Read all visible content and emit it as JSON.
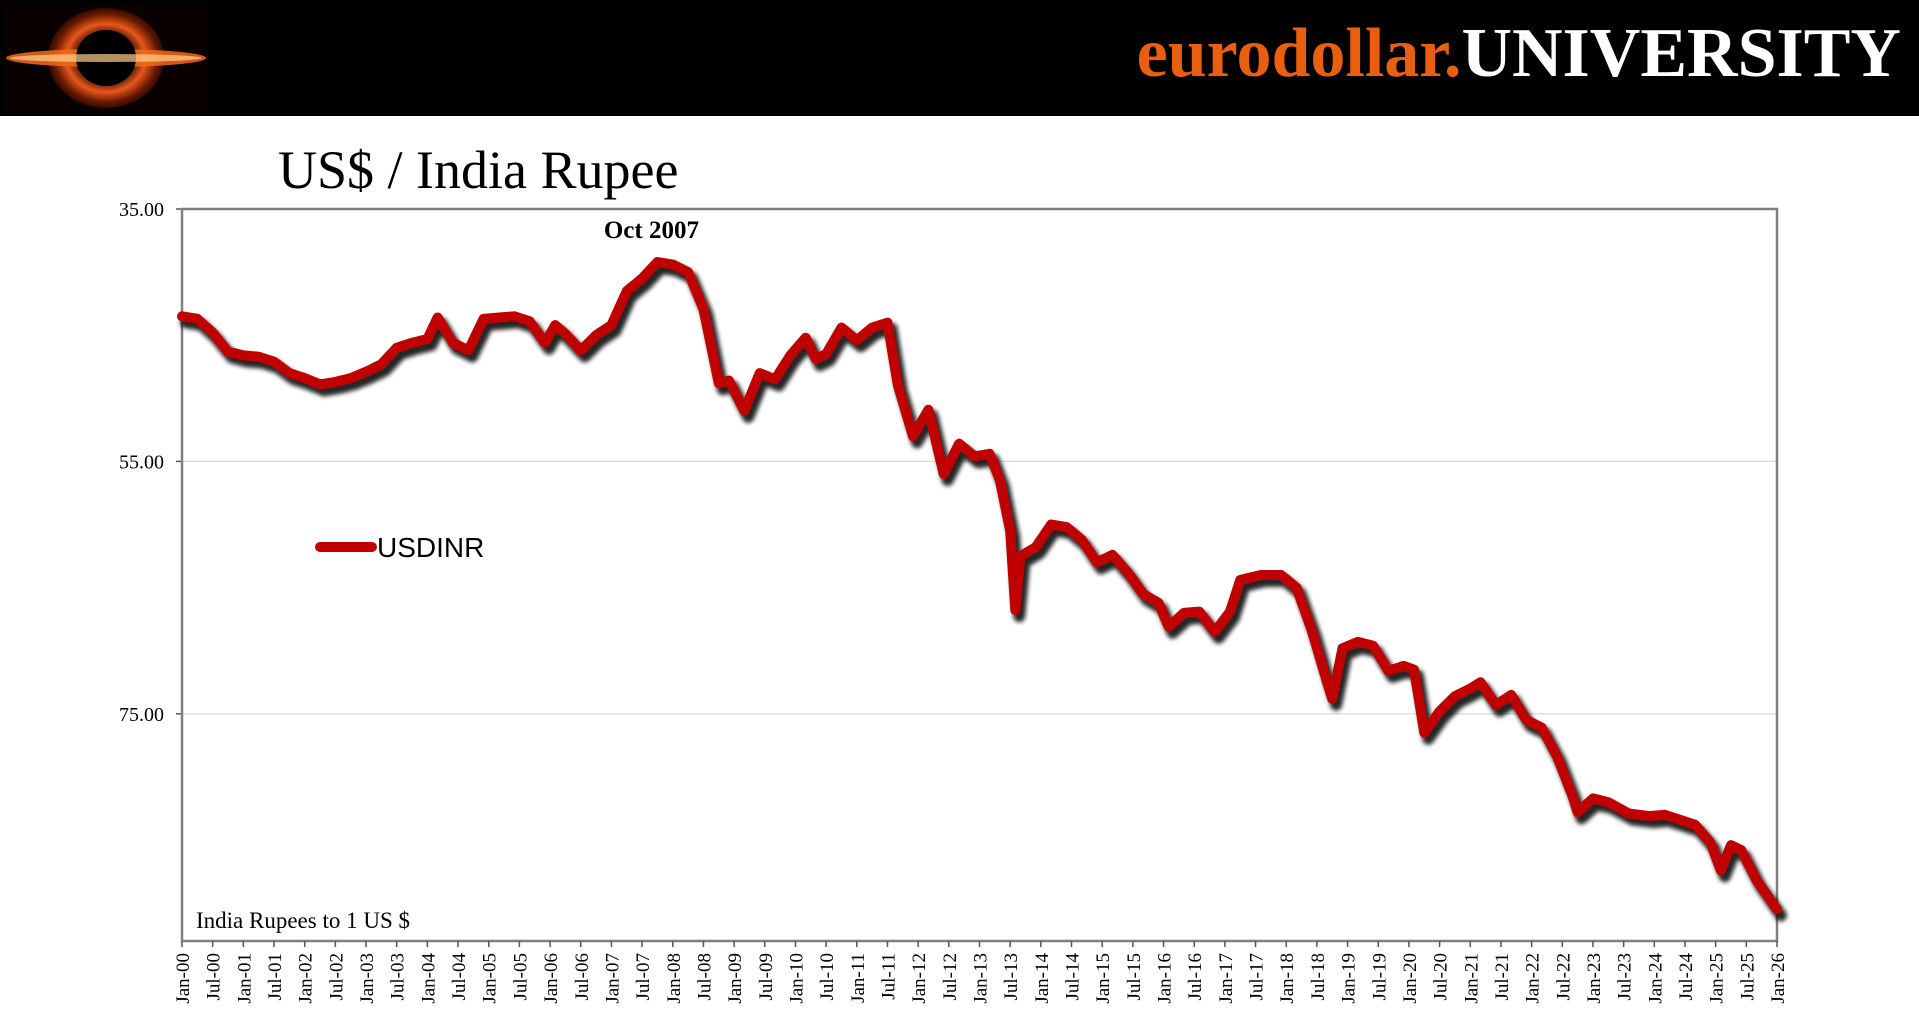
{
  "brand": {
    "part1": "eurodollar.",
    "part2": "UNIVERSITY",
    "accent_color": "#e8600f"
  },
  "chart_data": {
    "type": "line",
    "title": "US$ / India Rupee",
    "series": [
      {
        "name": "USDINR",
        "color": "#c00000",
        "points": [
          [
            "2000-01",
            43.5
          ],
          [
            "2000-04",
            43.7
          ],
          [
            "2000-07",
            44.8
          ],
          [
            "2000-10",
            46.3
          ],
          [
            "2001-01",
            46.6
          ],
          [
            "2001-04",
            46.7
          ],
          [
            "2001-07",
            47.1
          ],
          [
            "2001-10",
            48.0
          ],
          [
            "2002-01",
            48.4
          ],
          [
            "2002-04",
            48.9
          ],
          [
            "2002-07",
            48.7
          ],
          [
            "2002-10",
            48.4
          ],
          [
            "2003-01",
            47.9
          ],
          [
            "2003-04",
            47.3
          ],
          [
            "2003-07",
            46.0
          ],
          [
            "2003-10",
            45.6
          ],
          [
            "2004-01",
            45.3
          ],
          [
            "2004-03",
            43.6
          ],
          [
            "2004-06",
            45.6
          ],
          [
            "2004-09",
            46.2
          ],
          [
            "2004-12",
            43.7
          ],
          [
            "2005-03",
            43.6
          ],
          [
            "2005-06",
            43.5
          ],
          [
            "2005-09",
            43.9
          ],
          [
            "2005-12",
            45.6
          ],
          [
            "2006-02",
            44.2
          ],
          [
            "2006-04",
            44.9
          ],
          [
            "2006-07",
            46.2
          ],
          [
            "2006-10",
            45.0
          ],
          [
            "2007-01",
            44.2
          ],
          [
            "2007-04",
            41.5
          ],
          [
            "2007-07",
            40.5
          ],
          [
            "2007-10",
            39.2
          ],
          [
            "2008-01",
            39.4
          ],
          [
            "2008-04",
            40.0
          ],
          [
            "2008-07",
            42.9
          ],
          [
            "2008-10",
            48.8
          ],
          [
            "2008-12",
            48.6
          ],
          [
            "2009-03",
            51.0
          ],
          [
            "2009-06",
            48.0
          ],
          [
            "2009-09",
            48.5
          ],
          [
            "2009-12",
            46.6
          ],
          [
            "2010-03",
            45.2
          ],
          [
            "2010-05",
            46.9
          ],
          [
            "2010-07",
            46.5
          ],
          [
            "2010-10",
            44.4
          ],
          [
            "2011-01",
            45.4
          ],
          [
            "2011-04",
            44.4
          ],
          [
            "2011-07",
            44.0
          ],
          [
            "2011-09",
            48.9
          ],
          [
            "2011-12",
            53.0
          ],
          [
            "2012-03",
            50.9
          ],
          [
            "2012-06",
            56.0
          ],
          [
            "2012-09",
            53.6
          ],
          [
            "2012-12",
            54.6
          ],
          [
            "2013-03",
            54.4
          ],
          [
            "2013-05",
            56.5
          ],
          [
            "2013-07",
            60.5
          ],
          [
            "2013-08",
            66.8
          ],
          [
            "2013-09",
            62.5
          ],
          [
            "2013-12",
            61.8
          ],
          [
            "2014-03",
            60.0
          ],
          [
            "2014-06",
            60.2
          ],
          [
            "2014-09",
            61.2
          ],
          [
            "2014-12",
            63.0
          ],
          [
            "2015-03",
            62.4
          ],
          [
            "2015-06",
            63.8
          ],
          [
            "2015-09",
            65.5
          ],
          [
            "2015-12",
            66.2
          ],
          [
            "2016-02",
            68.1
          ],
          [
            "2016-05",
            67.0
          ],
          [
            "2016-08",
            66.9
          ],
          [
            "2016-11",
            68.5
          ],
          [
            "2017-02",
            66.9
          ],
          [
            "2017-04",
            64.4
          ],
          [
            "2017-08",
            64.0
          ],
          [
            "2017-12",
            64.0
          ],
          [
            "2018-03",
            65.0
          ],
          [
            "2018-06",
            68.4
          ],
          [
            "2018-09",
            72.5
          ],
          [
            "2018-10",
            73.8
          ],
          [
            "2018-12",
            69.8
          ],
          [
            "2019-03",
            69.3
          ],
          [
            "2019-06",
            69.6
          ],
          [
            "2019-09",
            71.6
          ],
          [
            "2019-12",
            71.2
          ],
          [
            "2020-02",
            71.5
          ],
          [
            "2020-04",
            76.5
          ],
          [
            "2020-07",
            74.8
          ],
          [
            "2020-10",
            73.6
          ],
          [
            "2021-01",
            73.0
          ],
          [
            "2021-03",
            72.5
          ],
          [
            "2021-06",
            74.3
          ],
          [
            "2021-09",
            73.5
          ],
          [
            "2021-12",
            75.5
          ],
          [
            "2022-03",
            76.1
          ],
          [
            "2022-06",
            78.4
          ],
          [
            "2022-09",
            81.5
          ],
          [
            "2022-10",
            82.8
          ],
          [
            "2023-01",
            81.7
          ],
          [
            "2023-04",
            82.0
          ],
          [
            "2023-08",
            82.9
          ],
          [
            "2023-12",
            83.1
          ],
          [
            "2024-03",
            83.0
          ],
          [
            "2024-06",
            83.4
          ],
          [
            "2024-09",
            83.8
          ],
          [
            "2024-12",
            85.2
          ],
          [
            "2025-02",
            87.4
          ],
          [
            "2025-04",
            85.4
          ],
          [
            "2025-06",
            85.8
          ],
          [
            "2025-09",
            88.2
          ],
          [
            "2026-01",
            90.5
          ]
        ]
      }
    ],
    "y_axis": {
      "min": 35,
      "max": 93,
      "inverted": true,
      "ticks": [
        "35.00",
        "55.00",
        "75.00"
      ],
      "tick_values": [
        35,
        55,
        75
      ]
    },
    "x_axis": {
      "start": "2000-01",
      "end": "2026-01",
      "tick_labels": [
        "Jan-00",
        "Jul-00",
        "Jan-01",
        "Jul-01",
        "Jan-02",
        "Jul-02",
        "Jan-03",
        "Jul-03",
        "Jan-04",
        "Jul-04",
        "Jan-05",
        "Jul-05",
        "Jan-06",
        "Jul-06",
        "Jan-07",
        "Jul-07",
        "Jan-08",
        "Jul-08",
        "Jan-09",
        "Jul-09",
        "Jan-10",
        "Jul-10",
        "Jan-11",
        "Jul-11",
        "Jan-12",
        "Jul-12",
        "Jan-13",
        "Jul-13",
        "Jan-14",
        "Jul-14",
        "Jan-15",
        "Jul-15",
        "Jan-16",
        "Jul-16",
        "Jan-17",
        "Jul-17",
        "Jan-18",
        "Jul-18",
        "Jan-19",
        "Jul-19",
        "Jan-20",
        "Jul-20",
        "Jan-21",
        "Jul-21",
        "Jan-22",
        "Jul-22",
        "Jan-23",
        "Jul-23",
        "Jan-24",
        "Jul-24",
        "Jan-25",
        "Jul-25",
        "Jan-26"
      ]
    },
    "annotation": {
      "text": "Oct 2007",
      "date": "2007-10"
    },
    "ylabel_note": "India Rupees to 1 US $",
    "legend": {
      "label": "USDINR",
      "position": "left-middle"
    },
    "grid": {
      "horizontal": true,
      "vertical": false
    }
  }
}
